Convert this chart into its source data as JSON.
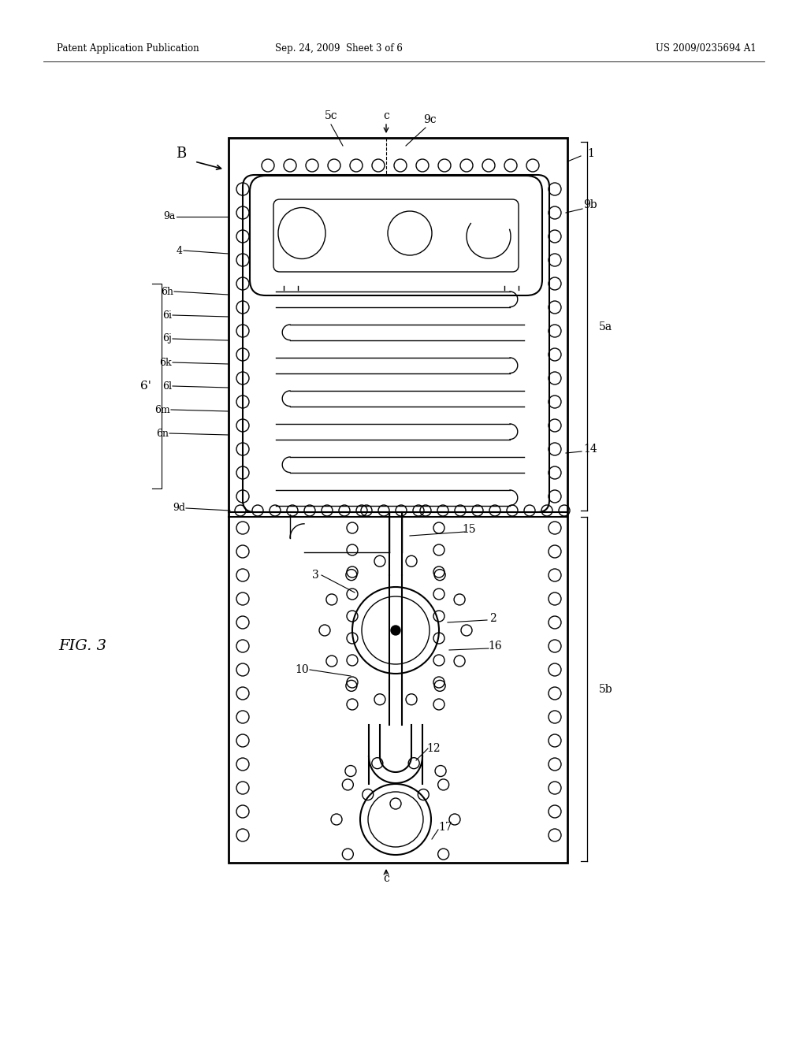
{
  "bg_color": "#ffffff",
  "header_left": "Patent Application Publication",
  "header_mid": "Sep. 24, 2009  Sheet 3 of 6",
  "header_right": "US 2009/0235694 A1",
  "fig_label": "FIG. 3"
}
